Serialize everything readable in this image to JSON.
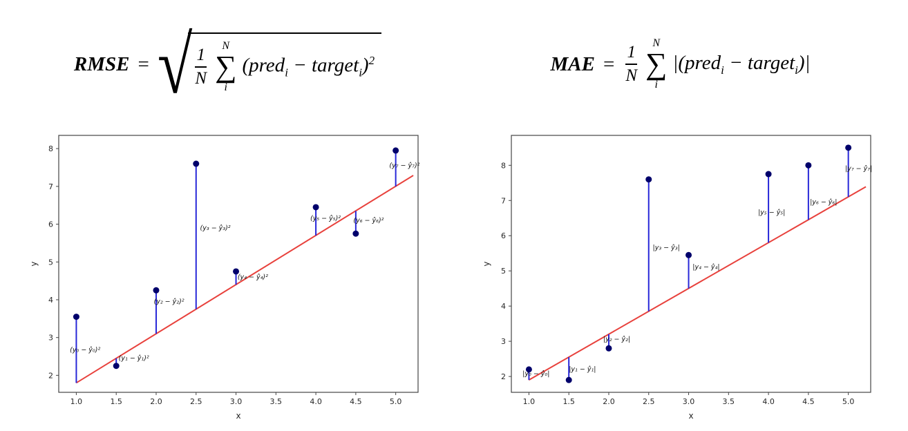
{
  "formulas": {
    "rmse": {
      "lhs": "RMSE",
      "eq": "=",
      "radical_symbol": "√",
      "frac_num": "1",
      "frac_den": "N",
      "sum_symbol": "∑",
      "sum_upper": "N",
      "sum_lower": "i",
      "expr_p1": "(pred",
      "expr_s1": "i",
      "expr_p2": " − target",
      "expr_s2": "i",
      "expr_p3": ")",
      "expr_sup": "2"
    },
    "mae": {
      "lhs": "MAE",
      "eq": "=",
      "frac_num": "1",
      "frac_den": "N",
      "sum_symbol": "∑",
      "sum_upper": "N",
      "sum_lower": "i",
      "expr_p1": "|(pred",
      "expr_s1": "i",
      "expr_p2": " − target",
      "expr_s2": "i",
      "expr_p3": ")|"
    }
  },
  "chart_data": [
    {
      "name": "rmse-residual-plot",
      "type": "scatter",
      "title": "",
      "xlabel": "x",
      "ylabel": "y",
      "xlim": [
        0.78,
        5.28
      ],
      "ylim": [
        1.55,
        8.35
      ],
      "grid": false,
      "legend": "none",
      "xtick_values": [
        1.0,
        1.5,
        2.0,
        2.5,
        3.0,
        3.5,
        4.0,
        4.5,
        5.0
      ],
      "xtick_labels": [
        "1.0",
        "1.5",
        "2.0",
        "2.5",
        "3.0",
        "3.5",
        "4.0",
        "4.5",
        "5.0"
      ],
      "ytick_values": [
        2,
        3,
        4,
        5,
        6,
        7,
        8
      ],
      "ytick_labels": [
        "2",
        "3",
        "4",
        "5",
        "6",
        "7",
        "8"
      ],
      "fit_line": {
        "x": [
          1.0,
          5.22
        ],
        "y": [
          1.8,
          7.29
        ],
        "color": "#e8413c"
      },
      "stem_color": "#2727d8",
      "points": {
        "color": "#00006b",
        "x": [
          1.0,
          1.5,
          2.0,
          2.5,
          3.0,
          4.0,
          4.5,
          5.0
        ],
        "y": [
          3.55,
          2.25,
          4.25,
          7.6,
          4.75,
          6.45,
          5.75,
          7.95
        ],
        "line_y": [
          1.8,
          2.45,
          3.1,
          3.75,
          4.4,
          5.7,
          6.35,
          7.0
        ]
      },
      "annotations": [
        {
          "x": 0.92,
          "y": 2.62,
          "text": "(y₀ − ŷ₀)²"
        },
        {
          "x": 1.53,
          "y": 2.4,
          "text": "(y₁ − ŷ₁)²"
        },
        {
          "x": 1.97,
          "y": 3.9,
          "text": "(y₂ − ŷ₂)²"
        },
        {
          "x": 2.55,
          "y": 5.85,
          "text": "(y₃ − ŷ₃)²"
        },
        {
          "x": 3.02,
          "y": 4.55,
          "text": "(y₄ − ŷ₄)²"
        },
        {
          "x": 3.93,
          "y": 6.1,
          "text": "(y₅ − ŷ₅)²"
        },
        {
          "x": 4.47,
          "y": 6.05,
          "text": "(y₆ − ŷ₆)²"
        },
        {
          "x": 4.92,
          "y": 7.5,
          "text": "(y₇ − ŷ₇)²"
        }
      ]
    },
    {
      "name": "mae-residual-plot",
      "type": "scatter",
      "title": "",
      "xlabel": "x",
      "ylabel": "y",
      "xlim": [
        0.78,
        5.28
      ],
      "ylim": [
        1.55,
        8.85
      ],
      "grid": false,
      "legend": "none",
      "xtick_values": [
        1.0,
        1.5,
        2.0,
        2.5,
        3.0,
        3.5,
        4.0,
        4.5,
        5.0
      ],
      "xtick_labels": [
        "1.0",
        "1.5",
        "2.0",
        "2.5",
        "3.0",
        "3.5",
        "4.0",
        "4.5",
        "5.0"
      ],
      "ytick_values": [
        2,
        3,
        4,
        5,
        6,
        7,
        8
      ],
      "ytick_labels": [
        "2",
        "3",
        "4",
        "5",
        "6",
        "7",
        "8"
      ],
      "fit_line": {
        "x": [
          1.0,
          5.22
        ],
        "y": [
          1.9,
          7.39
        ],
        "color": "#e8413c"
      },
      "stem_color": "#2727d8",
      "points": {
        "color": "#00006b",
        "x": [
          1.0,
          1.5,
          2.0,
          2.5,
          3.0,
          4.0,
          4.5,
          5.0
        ],
        "y": [
          2.2,
          1.9,
          2.8,
          7.6,
          5.45,
          7.75,
          8.0,
          8.5
        ],
        "line_y": [
          1.9,
          2.55,
          3.2,
          3.85,
          4.5,
          5.8,
          6.45,
          7.1
        ]
      },
      "annotations": [
        {
          "x": 0.92,
          "y": 2.02,
          "text": "|y₀ − ŷ₀|"
        },
        {
          "x": 1.5,
          "y": 2.15,
          "text": "|y₁ − ŷ₁|"
        },
        {
          "x": 1.93,
          "y": 3.0,
          "text": "|y₂ − ŷ₂|"
        },
        {
          "x": 2.55,
          "y": 5.6,
          "text": "|y₃ − ŷ₃|"
        },
        {
          "x": 3.05,
          "y": 5.05,
          "text": "|y₄ − ŷ₄|"
        },
        {
          "x": 3.87,
          "y": 6.6,
          "text": "|y₅ − ŷ₅|"
        },
        {
          "x": 4.52,
          "y": 6.9,
          "text": "|y₆ − ŷ₆|"
        },
        {
          "x": 4.96,
          "y": 7.85,
          "text": "|y₇ − ŷ₇|"
        }
      ]
    }
  ]
}
